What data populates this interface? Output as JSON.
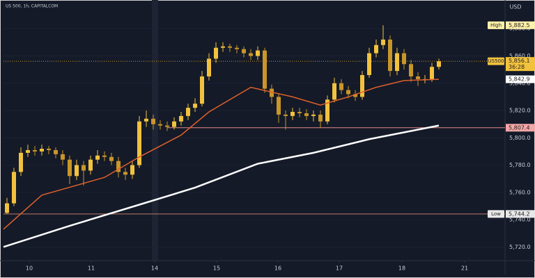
{
  "chart_data": {
    "type": "candlestick",
    "title": "US 500, 1h, CAPITALCOM",
    "currency": "USD",
    "x": [
      0,
      1,
      2,
      3,
      4,
      5,
      6,
      7,
      8,
      9,
      10,
      11,
      12,
      13,
      14,
      15,
      16,
      17,
      18,
      19,
      20,
      21,
      22,
      23,
      24,
      25,
      26,
      27,
      28,
      29,
      30,
      31,
      32,
      33,
      34,
      35,
      36,
      37,
      38,
      39,
      40,
      41,
      42,
      43,
      44,
      45,
      46,
      47,
      48,
      49,
      50,
      51,
      52,
      53,
      54,
      55,
      56,
      57,
      58,
      59,
      60,
      61,
      62
    ],
    "open": [
      5745,
      5752,
      5775,
      5789,
      5791,
      5790,
      5792,
      5791,
      5788,
      5784,
      5772,
      5780,
      5776,
      5784,
      5787,
      5786,
      5783,
      5775,
      5773,
      5780,
      5812,
      5814,
      5810,
      5809,
      5808,
      5812,
      5816,
      5822,
      5825,
      5845,
      5858,
      5866,
      5867,
      5866,
      5865,
      5862,
      5860,
      5864,
      5836,
      5830,
      5817,
      5816,
      5819,
      5818,
      5816,
      5817,
      5812,
      5828,
      5840,
      5835,
      5832,
      5830,
      5846,
      5862,
      5868,
      5872,
      5849,
      5862,
      5854,
      5845,
      5843,
      5843,
      5852
    ],
    "high": [
      5756,
      5778,
      5793,
      5795,
      5794,
      5795,
      5794,
      5793,
      5791,
      5787,
      5784,
      5783,
      5787,
      5791,
      5790,
      5789,
      5786,
      5778,
      5783,
      5816,
      5820,
      5817,
      5813,
      5812,
      5815,
      5819,
      5825,
      5829,
      5849,
      5862,
      5870,
      5870,
      5869,
      5868,
      5867,
      5865,
      5867,
      5866,
      5839,
      5832,
      5820,
      5822,
      5822,
      5821,
      5820,
      5820,
      5831,
      5844,
      5843,
      5838,
      5835,
      5849,
      5866,
      5872,
      5882.5,
      5875,
      5866,
      5865,
      5857,
      5848,
      5846,
      5855,
      5858
    ],
    "low": [
      5744.2,
      5750,
      5772,
      5786,
      5787,
      5787,
      5788,
      5785,
      5780,
      5766,
      5769,
      5765,
      5773,
      5781,
      5783,
      5780,
      5771,
      5769,
      5770,
      5778,
      5808,
      5806,
      5806,
      5805,
      5806,
      5809,
      5813,
      5819,
      5823,
      5842,
      5855,
      5863,
      5863,
      5862,
      5859,
      5857,
      5857,
      5833,
      5825,
      5811,
      5806,
      5813,
      5815,
      5813,
      5812,
      5807,
      5810,
      5826,
      5832,
      5829,
      5827,
      5828,
      5844,
      5859,
      5865,
      5845,
      5846,
      5850,
      5841,
      5838,
      5840,
      5841,
      5850
    ],
    "close": [
      5752,
      5775,
      5789,
      5791,
      5790,
      5792,
      5791,
      5788,
      5784,
      5772,
      5780,
      5776,
      5784,
      5787,
      5786,
      5783,
      5775,
      5773,
      5780,
      5812,
      5814,
      5810,
      5809,
      5808,
      5812,
      5816,
      5822,
      5825,
      5845,
      5858,
      5866,
      5867,
      5866,
      5865,
      5862,
      5860,
      5864,
      5836,
      5830,
      5817,
      5816,
      5819,
      5818,
      5816,
      5817,
      5812,
      5828,
      5840,
      5835,
      5832,
      5830,
      5846,
      5862,
      5868,
      5872,
      5849,
      5862,
      5854,
      5845,
      5843,
      5843,
      5852,
      5856.1
    ],
    "up_color": "#f2c23e",
    "down_color": "#c9962a",
    "series": [
      {
        "color": "#e0602a",
        "x": [
          -0.5,
          5,
          14,
          19,
          25,
          29,
          35,
          41,
          45,
          49,
          53,
          57,
          62
        ],
        "values": [
          5733,
          5758,
          5771,
          5786,
          5802,
          5819,
          5837,
          5830,
          5824,
          5830,
          5837,
          5842,
          5842.9
        ]
      },
      {
        "color": "#ffffff",
        "x": [
          -0.5,
          9,
          19,
          27,
          36,
          44,
          52,
          62
        ],
        "values": [
          5720,
          5735.5,
          5751,
          5763.5,
          5781,
          5789,
          5799,
          5809
        ]
      }
    ],
    "price_labels": [
      {
        "name": "High",
        "value": 5882.5,
        "label": "5,882.5",
        "color": "#fff1a8"
      },
      {
        "name": "US500",
        "value": 5856.1,
        "label": "5,856.1",
        "timer": "36:28",
        "color": "#f2c23e",
        "line_color": "#c9962a",
        "line_from": -0.5,
        "dashed": true
      },
      {
        "value": 5842.9,
        "label": "5,842.9",
        "color": "#ffffff"
      },
      {
        "value": 5807.4,
        "label": "5,807.4",
        "color": "#f4a6a6",
        "line_color": "#e58a8a",
        "line_from": 23
      },
      {
        "name": "Low",
        "value": 5744.2,
        "label": "5,744.2",
        "color": "#e8e8e8",
        "line_color": "#c07a6a",
        "line_from": -0.5
      }
    ],
    "xlim": [
      -0.5,
      71.5
    ],
    "xticks": [
      {
        "value": 3.2,
        "label": "10"
      },
      {
        "value": 12.1,
        "label": "11"
      },
      {
        "value": 21.2,
        "label": "14"
      },
      {
        "value": 30.1,
        "label": "15"
      },
      {
        "value": 38.9,
        "label": "16"
      },
      {
        "value": 47.7,
        "label": "17"
      },
      {
        "value": 56.7,
        "label": "18"
      },
      {
        "value": 65.7,
        "label": "21"
      }
    ],
    "ylim": [
      5710,
      5901
    ],
    "yticks": [
      {
        "value": 5720,
        "label": "5,720.0"
      },
      {
        "value": 5740,
        "label": "5,740.0"
      },
      {
        "value": 5760,
        "label": "5,760.0"
      },
      {
        "value": 5780,
        "label": "5,780.0"
      },
      {
        "value": 5800,
        "label": "5,800.0"
      },
      {
        "value": 5820,
        "label": "5,820.0"
      },
      {
        "value": 5840,
        "label": "5,840.0"
      },
      {
        "value": 5860,
        "label": "5,860.0"
      },
      {
        "value": 5880,
        "label": "5,880.0"
      }
    ],
    "grid": true,
    "grid_color": "#1c2232"
  }
}
